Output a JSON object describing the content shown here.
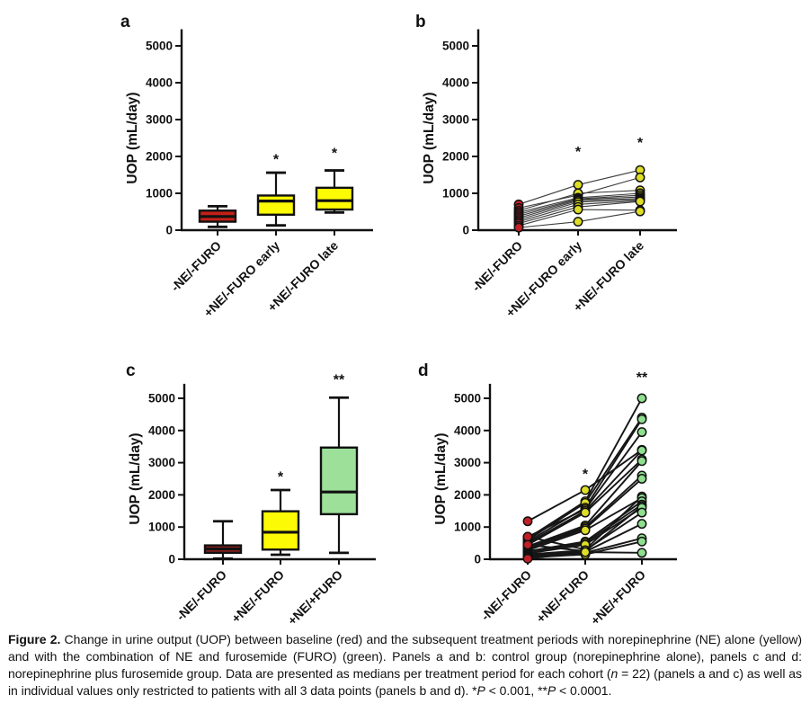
{
  "figure_label": "Figure 2.",
  "caption": {
    "segments": [
      {
        "text": "Figure 2.",
        "bold": true
      },
      {
        "text": "  Change in urine output (UOP) between baseline (red) and the subsequent treatment periods with norepinephrine (NE) alone (yellow) and with the combination of NE and furosemide (FURO) (green). Panels a and b: control group (norepinephrine alone), panels c and d: norepinephrine plus furosemide group. Data are presented as medians per treatment period for each cohort ("
      },
      {
        "text": "n",
        "italic": true
      },
      {
        "text": " = 22) (panels a and c) as well as in individual values only restricted to patients with all 3 data points (panels b and d). *"
      },
      {
        "text": "P",
        "italic": true
      },
      {
        "text": " < 0.001, **"
      },
      {
        "text": "P",
        "italic": true
      },
      {
        "text": " < 0.0001."
      }
    ]
  },
  "chart_data": [
    {
      "panel": "a",
      "type": "box",
      "title": "a",
      "ylabel": "UOP (mL/day)",
      "y_ticks": [
        0,
        1000,
        2000,
        3000,
        4000,
        5000
      ],
      "ylim": [
        0,
        5450
      ],
      "categories": [
        "-NE/-FURO",
        "+NE/-FURO early",
        "+NE/-FURO late"
      ],
      "boxes": [
        {
          "category": "-NE/-FURO",
          "min": 90,
          "q1": 230,
          "median": 370,
          "q3": 530,
          "max": 650,
          "fill": "#c32017"
        },
        {
          "category": "+NE/-FURO early",
          "min": 130,
          "q1": 420,
          "median": 790,
          "q3": 940,
          "max": 1560,
          "fill": "#fcfa05"
        },
        {
          "category": "+NE/-FURO late",
          "min": 480,
          "q1": 560,
          "median": 800,
          "q3": 1150,
          "max": 1620,
          "fill": "#fcfa05"
        }
      ],
      "significance": [
        {
          "category_index": 1,
          "mark": "*",
          "y": 1790
        },
        {
          "category_index": 2,
          "mark": "*",
          "y": 1960
        }
      ]
    },
    {
      "panel": "b",
      "type": "paired",
      "title": "b",
      "ylabel": "UOP (mL/day)",
      "y_ticks": [
        0,
        1000,
        2000,
        3000,
        4000,
        5000
      ],
      "ylim": [
        0,
        5450
      ],
      "categories": [
        "-NE/-FURO",
        "+NE/-FURO early",
        "+NE/-FURO late"
      ],
      "point_fills": [
        "#c02026",
        "#dede26",
        "#dede26"
      ],
      "line_color": "#3c3c3c",
      "line_width": 1.1,
      "patients": [
        [
          700,
          1230,
          1630
        ],
        [
          600,
          950,
          1430
        ],
        [
          530,
          1000,
          1080
        ],
        [
          480,
          880,
          1000
        ],
        [
          430,
          850,
          950
        ],
        [
          380,
          830,
          900
        ],
        [
          330,
          800,
          860
        ],
        [
          280,
          760,
          830
        ],
        [
          230,
          700,
          800
        ],
        [
          180,
          630,
          780
        ],
        [
          120,
          560,
          540
        ],
        [
          70,
          230,
          510
        ]
      ],
      "significance": [
        {
          "category_index": 1,
          "mark": "*",
          "y": 2000
        },
        {
          "category_index": 2,
          "mark": "*",
          "y": 2250
        }
      ]
    },
    {
      "panel": "c",
      "type": "box",
      "title": "c",
      "ylabel": "UOP (mL/day)",
      "y_ticks": [
        0,
        1000,
        2000,
        3000,
        4000,
        5000
      ],
      "ylim": [
        0,
        5450
      ],
      "categories": [
        "-NE/-FURO",
        "+NE/-FURO",
        "+NE/+FURO"
      ],
      "boxes": [
        {
          "category": "-NE/-FURO",
          "min": 20,
          "q1": 200,
          "median": 320,
          "q3": 430,
          "max": 1180,
          "fill": "#97201b"
        },
        {
          "category": "+NE/-FURO",
          "min": 140,
          "q1": 300,
          "median": 840,
          "q3": 1490,
          "max": 2150,
          "fill": "#fcfa05"
        },
        {
          "category": "+NE/+FURO",
          "min": 200,
          "q1": 1400,
          "median": 2090,
          "q3": 3470,
          "max": 5020,
          "fill": "#9ce09a"
        }
      ],
      "significance": [
        {
          "category_index": 1,
          "mark": "*",
          "y": 2420
        },
        {
          "category_index": 2,
          "mark": "**",
          "y": 5430
        }
      ]
    },
    {
      "panel": "d",
      "type": "paired",
      "title": "d",
      "ylabel": "UOP (mL/day)",
      "y_ticks": [
        0,
        1000,
        2000,
        3000,
        4000,
        5000
      ],
      "ylim": [
        0,
        5450
      ],
      "categories": [
        "-NE/-FURO",
        "+NE/-FURO",
        "+NE/+FURO"
      ],
      "point_fills": [
        "#c02026",
        "#dede26",
        "#8fdf8f"
      ],
      "line_color": "#161616",
      "line_width": 1.9,
      "patients": [
        [
          1180,
          2150,
          3400
        ],
        [
          650,
          1800,
          5000
        ],
        [
          600,
          1750,
          4400
        ],
        [
          550,
          1600,
          4350
        ],
        [
          700,
          1550,
          3950
        ],
        [
          500,
          1500,
          3380
        ],
        [
          450,
          1450,
          3100
        ],
        [
          400,
          1050,
          3050
        ],
        [
          350,
          1000,
          2600
        ],
        [
          330,
          950,
          2500
        ],
        [
          700,
          300,
          1950
        ],
        [
          280,
          900,
          1900
        ],
        [
          250,
          550,
          1800
        ],
        [
          230,
          500,
          1700
        ],
        [
          450,
          250,
          1650
        ],
        [
          180,
          450,
          1600
        ],
        [
          150,
          280,
          1450
        ],
        [
          120,
          230,
          1100
        ],
        [
          80,
          200,
          650
        ],
        [
          50,
          150,
          550
        ],
        [
          20,
          220,
          200
        ]
      ],
      "significance": [
        {
          "category_index": 1,
          "mark": "*",
          "y": 2500
        },
        {
          "category_index": 2,
          "mark": "**",
          "y": 5500
        }
      ]
    }
  ]
}
